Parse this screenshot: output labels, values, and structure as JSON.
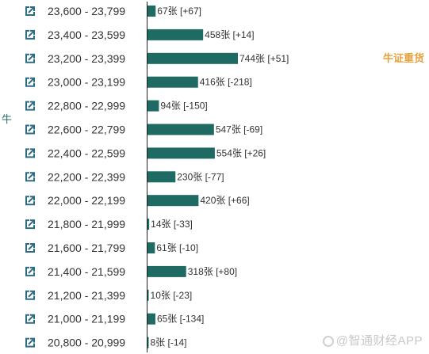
{
  "side_label": "牛",
  "watermark": "@智通财经APP",
  "colors": {
    "bar": "#1f6b63",
    "icon": "#2d6d84",
    "note": "#e8a23c",
    "axis": "#222222"
  },
  "row_icon": "external-link-icon",
  "chart_data": {
    "type": "bar",
    "orientation": "horizontal",
    "categories": [
      "23,600 - 23,799",
      "23,400 - 23,599",
      "23,200 - 23,399",
      "23,000 - 23,199",
      "22,800 - 22,999",
      "22,600 - 22,799",
      "22,400 - 22,599",
      "22,200 - 22,399",
      "22,000 - 22,199",
      "21,800 - 21,999",
      "21,600 - 21,799",
      "21,400 - 21,599",
      "21,200 - 21,399",
      "21,000 - 21,199",
      "20,800 - 20,999"
    ],
    "values": [
      67,
      458,
      744,
      416,
      94,
      547,
      554,
      230,
      420,
      14,
      61,
      318,
      10,
      65,
      8
    ],
    "labels": [
      "67张 [+67]",
      "458张 [+14]",
      "744张 [+51]",
      "416张 [-218]",
      "94张 [-150]",
      "547张 [-69]",
      "554张 [+26]",
      "230张 [-77]",
      "420张 [+66]",
      "14张 [-33]",
      "61张 [-10]",
      "318张 [+80]",
      "10张 [-23]",
      "65张 [-134]",
      "8张 [-14]"
    ],
    "annotation": {
      "category": "23,200 - 23,399",
      "text": "牛证重货"
    },
    "xlim": [
      0,
      744
    ],
    "legend": "none",
    "grid": false
  }
}
